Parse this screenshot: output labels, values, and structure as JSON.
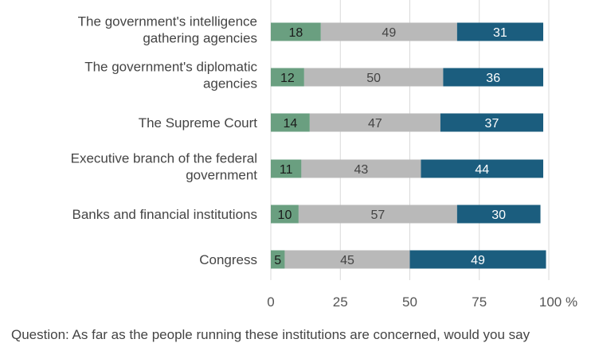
{
  "chart_data": {
    "type": "bar",
    "orientation": "horizontal",
    "stacked": true,
    "categories": [
      [
        "The government's intelligence",
        "gathering agencies"
      ],
      [
        "The government's diplomatic",
        "agencies"
      ],
      [
        "The Supreme Court"
      ],
      [
        "Executive branch of the federal",
        "government"
      ],
      [
        "Banks and financial institutions"
      ],
      [
        "Congress"
      ]
    ],
    "series": [
      {
        "color": "#6a9f80",
        "label_color": "#1a1a1a",
        "values": [
          18,
          12,
          14,
          11,
          10,
          5
        ]
      },
      {
        "color": "#b9b9b9",
        "label_color": "#444444",
        "values": [
          49,
          50,
          47,
          43,
          57,
          45
        ]
      },
      {
        "color": "#1b5d7e",
        "label_color": "#ffffff",
        "values": [
          31,
          36,
          37,
          44,
          30,
          49
        ]
      }
    ],
    "xlim": [
      0,
      100
    ],
    "x_ticks": [
      "0",
      "25",
      "50",
      "75",
      "100 %"
    ],
    "grid": true,
    "legend": "none"
  },
  "footnote": "Question: As far as the people running these institutions are concerned, would you say"
}
